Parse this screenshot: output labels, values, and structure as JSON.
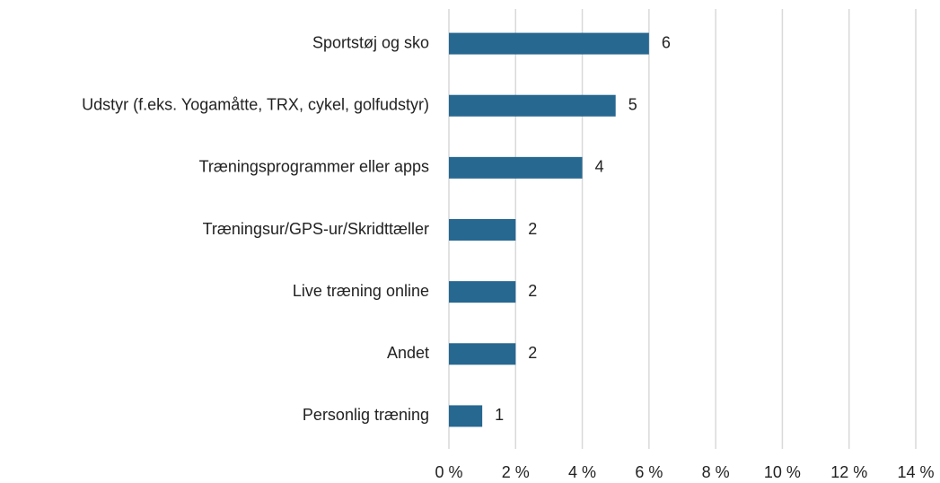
{
  "chart_data": {
    "type": "bar",
    "orientation": "horizontal",
    "categories": [
      "Sportstøj og sko",
      "Udstyr (f.eks. Yogamåtte, TRX, cykel, golfudstyr)",
      "Træningsprogrammer eller apps",
      "Træningsur/GPS-ur/Skridttæller",
      "Live træning online",
      "Andet",
      "Personlig træning"
    ],
    "values": [
      6,
      5,
      4,
      2,
      2,
      2,
      1
    ],
    "color": "#276891",
    "xlim": [
      0,
      14
    ],
    "xticks": [
      {
        "value": 0,
        "label": "0 %"
      },
      {
        "value": 2,
        "label": "2 %"
      },
      {
        "value": 4,
        "label": "4 %"
      },
      {
        "value": 6,
        "label": "6 %"
      },
      {
        "value": 8,
        "label": "8 %"
      },
      {
        "value": 10,
        "label": "10 %"
      },
      {
        "value": 12,
        "label": "12 %"
      },
      {
        "value": 14,
        "label": "14 %"
      }
    ],
    "grid": true
  }
}
